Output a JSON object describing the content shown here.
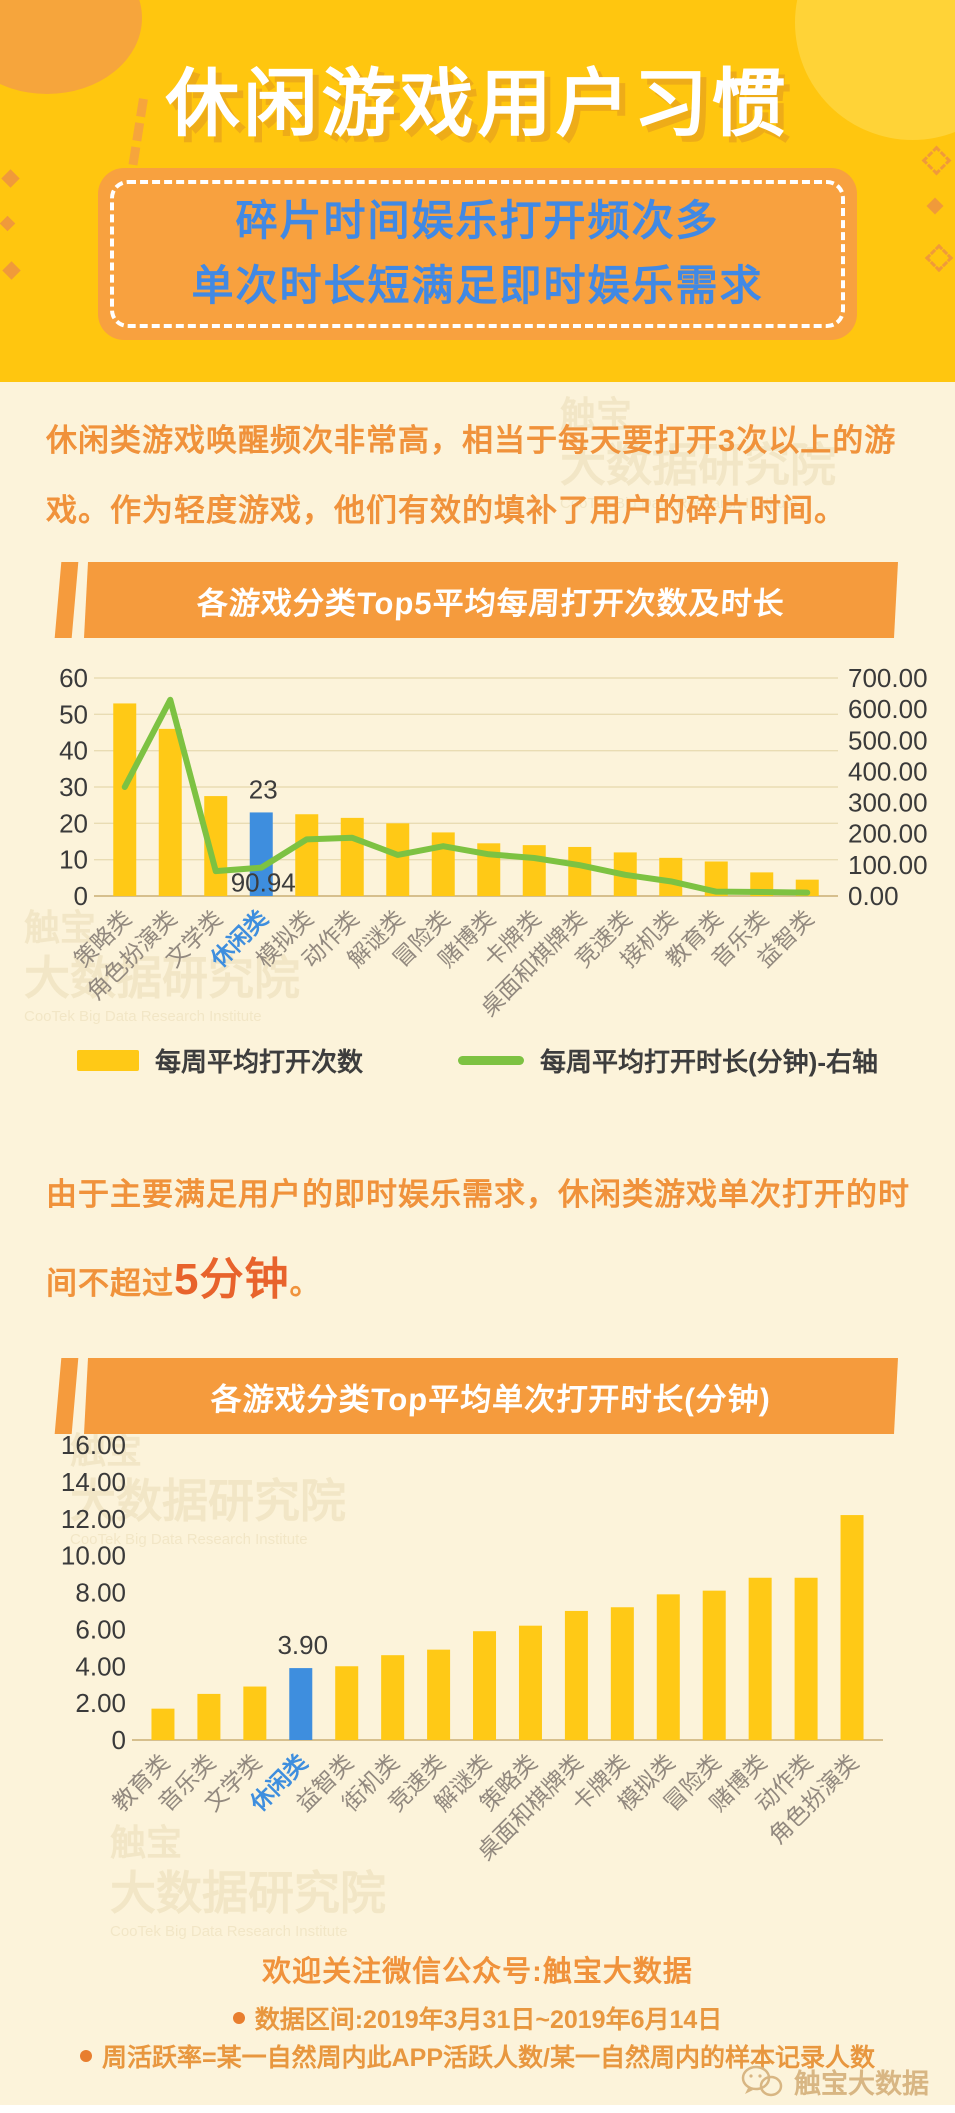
{
  "palette": {
    "header_yellow": "#FFC60F",
    "body_cream": "#FCF3DA",
    "banner_orange": "#F59B3D",
    "subtitle_blue": "#4189E4",
    "text_orange": "#F0923B",
    "emphasis_orange": "#E8632C",
    "bar_yellow": "#FFC916",
    "bar_blue": "#3E8EDE",
    "line_green": "#7DC242",
    "grid": "#E9DCB3",
    "baseline": "#D6BF8D",
    "axis_text": "#3a3a3a",
    "xlabel_gray": "#92897f"
  },
  "header": {
    "title": "休闲游戏用户习惯",
    "subtitle_line1": "碎片时间娱乐打开频次多",
    "subtitle_line2": "单次时长短满足即时娱乐需求"
  },
  "intro": {
    "text": "休闲类游戏唤醒频次非常高，相当于每天要打开3次以上的游戏。作为轻度游戏，他们有效的填补了用户的碎片时间。"
  },
  "mid": {
    "part1": "由于主要满足用户的即时娱乐需求，休闲类游戏单次打开的时间不超过",
    "em": "5分钟",
    "part2": "。"
  },
  "chart_data": [
    {
      "type": "bar+line",
      "title": "各游戏分类Top5平均每周打开次数及时长",
      "categories": [
        "策略类",
        "角色扮演类",
        "文学类",
        "休闲类",
        "模拟类",
        "动作类",
        "解谜类",
        "冒险类",
        "赌博类",
        "卡牌类",
        "桌面和棋牌类",
        "竞速类",
        "接机类",
        "教育类",
        "音乐类",
        "益智类"
      ],
      "series": [
        {
          "name": "每周平均打开次数",
          "type": "bar",
          "axis": "left",
          "values": [
            53,
            46,
            27.5,
            23,
            22.5,
            21.5,
            20,
            17.5,
            14.5,
            14,
            13.5,
            12,
            10.5,
            9.5,
            6.5,
            4.5
          ]
        },
        {
          "name": "每周平均打开时长(分钟)-右轴",
          "type": "line",
          "axis": "right",
          "values": [
            350,
            630,
            80,
            90.94,
            182,
            187,
            132,
            160,
            134,
            122,
            99,
            68,
            47,
            14,
            13,
            11
          ]
        }
      ],
      "highlight_index": 3,
      "annotations": [
        {
          "type": "bar",
          "index": 3,
          "text": "23"
        },
        {
          "type": "line",
          "index": 3,
          "text": "90.94"
        }
      ],
      "left_axis": {
        "min": 0,
        "max": 60,
        "ticks": [
          "0",
          "10",
          "20",
          "30",
          "40",
          "50",
          "60"
        ]
      },
      "right_axis": {
        "min": 0,
        "max": 700,
        "ticks": [
          "0.00",
          "100.00",
          "200.00",
          "300.00",
          "400.00",
          "500.00",
          "600.00",
          "700.00"
        ]
      },
      "legend_position": "bottom",
      "grid": true
    },
    {
      "type": "bar",
      "title": "各游戏分类Top平均单次打开时长(分钟)",
      "categories": [
        "教育类",
        "音乐类",
        "文学类",
        "休闲类",
        "益智类",
        "街机类",
        "竞速类",
        "解谜类",
        "策略类",
        "桌面和棋牌类",
        "卡牌类",
        "模拟类",
        "冒险类",
        "赌博类",
        "动作类",
        "角色扮演类"
      ],
      "values": [
        1.7,
        2.5,
        2.9,
        3.9,
        4.0,
        4.6,
        4.9,
        5.9,
        6.2,
        7.0,
        7.2,
        7.9,
        8.1,
        8.8,
        8.8,
        12.2
      ],
      "highlight_index": 3,
      "annotations": [
        {
          "type": "bar",
          "index": 3,
          "text": "3.90"
        }
      ],
      "left_axis": {
        "min": 0,
        "max": 16,
        "ticks": [
          "0",
          "2.00",
          "4.00",
          "6.00",
          "8.00",
          "10.00",
          "12.00",
          "14.00",
          "16.00"
        ]
      },
      "grid": false
    }
  ],
  "watermark": {
    "line1": "触宝",
    "line2": "大数据研究院",
    "line3": "CooTek Big Data Research Institute"
  },
  "footer": {
    "wechat_line": "欢迎关注微信公众号:触宝大数据",
    "note1": "数据区间:2019年3月31日~2019年6月14日",
    "note2": "周活跃率=某一自然周内此APP活跃人数/某一自然周内的样本记录人数",
    "brand": "触宝大数据"
  }
}
